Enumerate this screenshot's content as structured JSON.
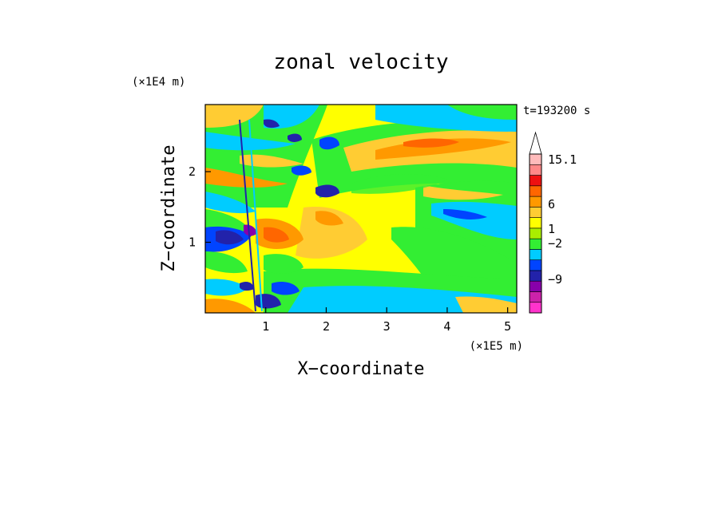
{
  "chart_data": {
    "type": "heatmap",
    "title": "zonal velocity",
    "xlabel": "X−coordinate",
    "ylabel": "Z−coordinate",
    "x_unit": "(×1E5 m)",
    "y_unit": "(×1E4 m)",
    "time_label": "t=193200 s",
    "xlim": [
      0,
      5.15
    ],
    "ylim": [
      0,
      2.95
    ],
    "x_ticks": [
      "1",
      "2",
      "3",
      "4",
      "5"
    ],
    "y_ticks": [
      "1",
      "2"
    ],
    "colorbar": {
      "bins": [
        {
          "color": "#ff33cc"
        },
        {
          "color": "#cc22aa"
        },
        {
          "color": "#8800aa"
        },
        {
          "color": "#2222aa"
        },
        {
          "color": "#0044ff"
        },
        {
          "color": "#00ccff"
        },
        {
          "color": "#33ee33"
        },
        {
          "color": "#aaee00"
        },
        {
          "color": "#ffff00"
        },
        {
          "color": "#ffcc33"
        },
        {
          "color": "#ff9900"
        },
        {
          "color": "#ff6600"
        },
        {
          "color": "#ee1111"
        },
        {
          "color": "#ff8888"
        },
        {
          "color": "#ffbbbb"
        }
      ],
      "labels": [
        {
          "text": "15.1",
          "value": 15.1
        },
        {
          "text": "6",
          "value": 6
        },
        {
          "text": "1",
          "value": 1
        },
        {
          "text": "−2",
          "value": -2
        },
        {
          "text": "−9",
          "value": -9
        }
      ]
    }
  }
}
